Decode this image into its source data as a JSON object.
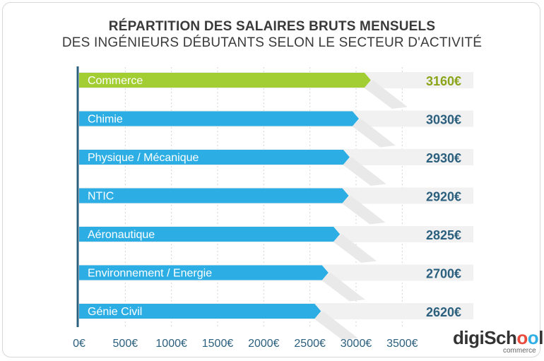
{
  "title": "RÉPARTITION DES SALAIRES BRUTS MENSUELS",
  "subtitle": "DES INGÉNIEURS DÉBUTANTS SELON LE SECTEUR D'ACTIVITÉ",
  "logo": {
    "part1": "digiSch",
    "part2": "o",
    "part3": "o",
    "part4": "l",
    "sub": "commerce"
  },
  "colors": {
    "highlight": "#a2cd33",
    "bar": "#2caee4",
    "highlight_text": "#8aa51a",
    "value_text": "#2b5f7e",
    "axis": "#2b5f7e"
  },
  "chart_data": {
    "type": "bar",
    "orientation": "horizontal",
    "title": "RÉPARTITION DES SALAIRES BRUTS MENSUELS",
    "subtitle": "DES INGÉNIEURS DÉBUTANTS SELON LE SECTEUR D'ACTIVITÉ",
    "categories": [
      "Commerce",
      "Chimie",
      "Physique / Mécanique",
      "NTIC",
      "Aéronautique",
      "Environnement / Energie",
      "Génie Civil"
    ],
    "values": [
      3160,
      3030,
      2930,
      2920,
      2825,
      2700,
      2620
    ],
    "value_labels": [
      "3160€",
      "3030€",
      "2930€",
      "2920€",
      "2825€",
      "2700€",
      "2620€"
    ],
    "highlight_index": 0,
    "xlim": [
      0,
      3500
    ],
    "xticks": [
      0,
      500,
      1000,
      1500,
      2000,
      2500,
      3000,
      3500
    ],
    "xtick_labels": [
      "0€",
      "500€",
      "1000€",
      "1500€",
      "2000€",
      "2500€",
      "3000€",
      "3500€"
    ],
    "xlabel": "",
    "ylabel": "",
    "grid": true,
    "legend": "none"
  }
}
